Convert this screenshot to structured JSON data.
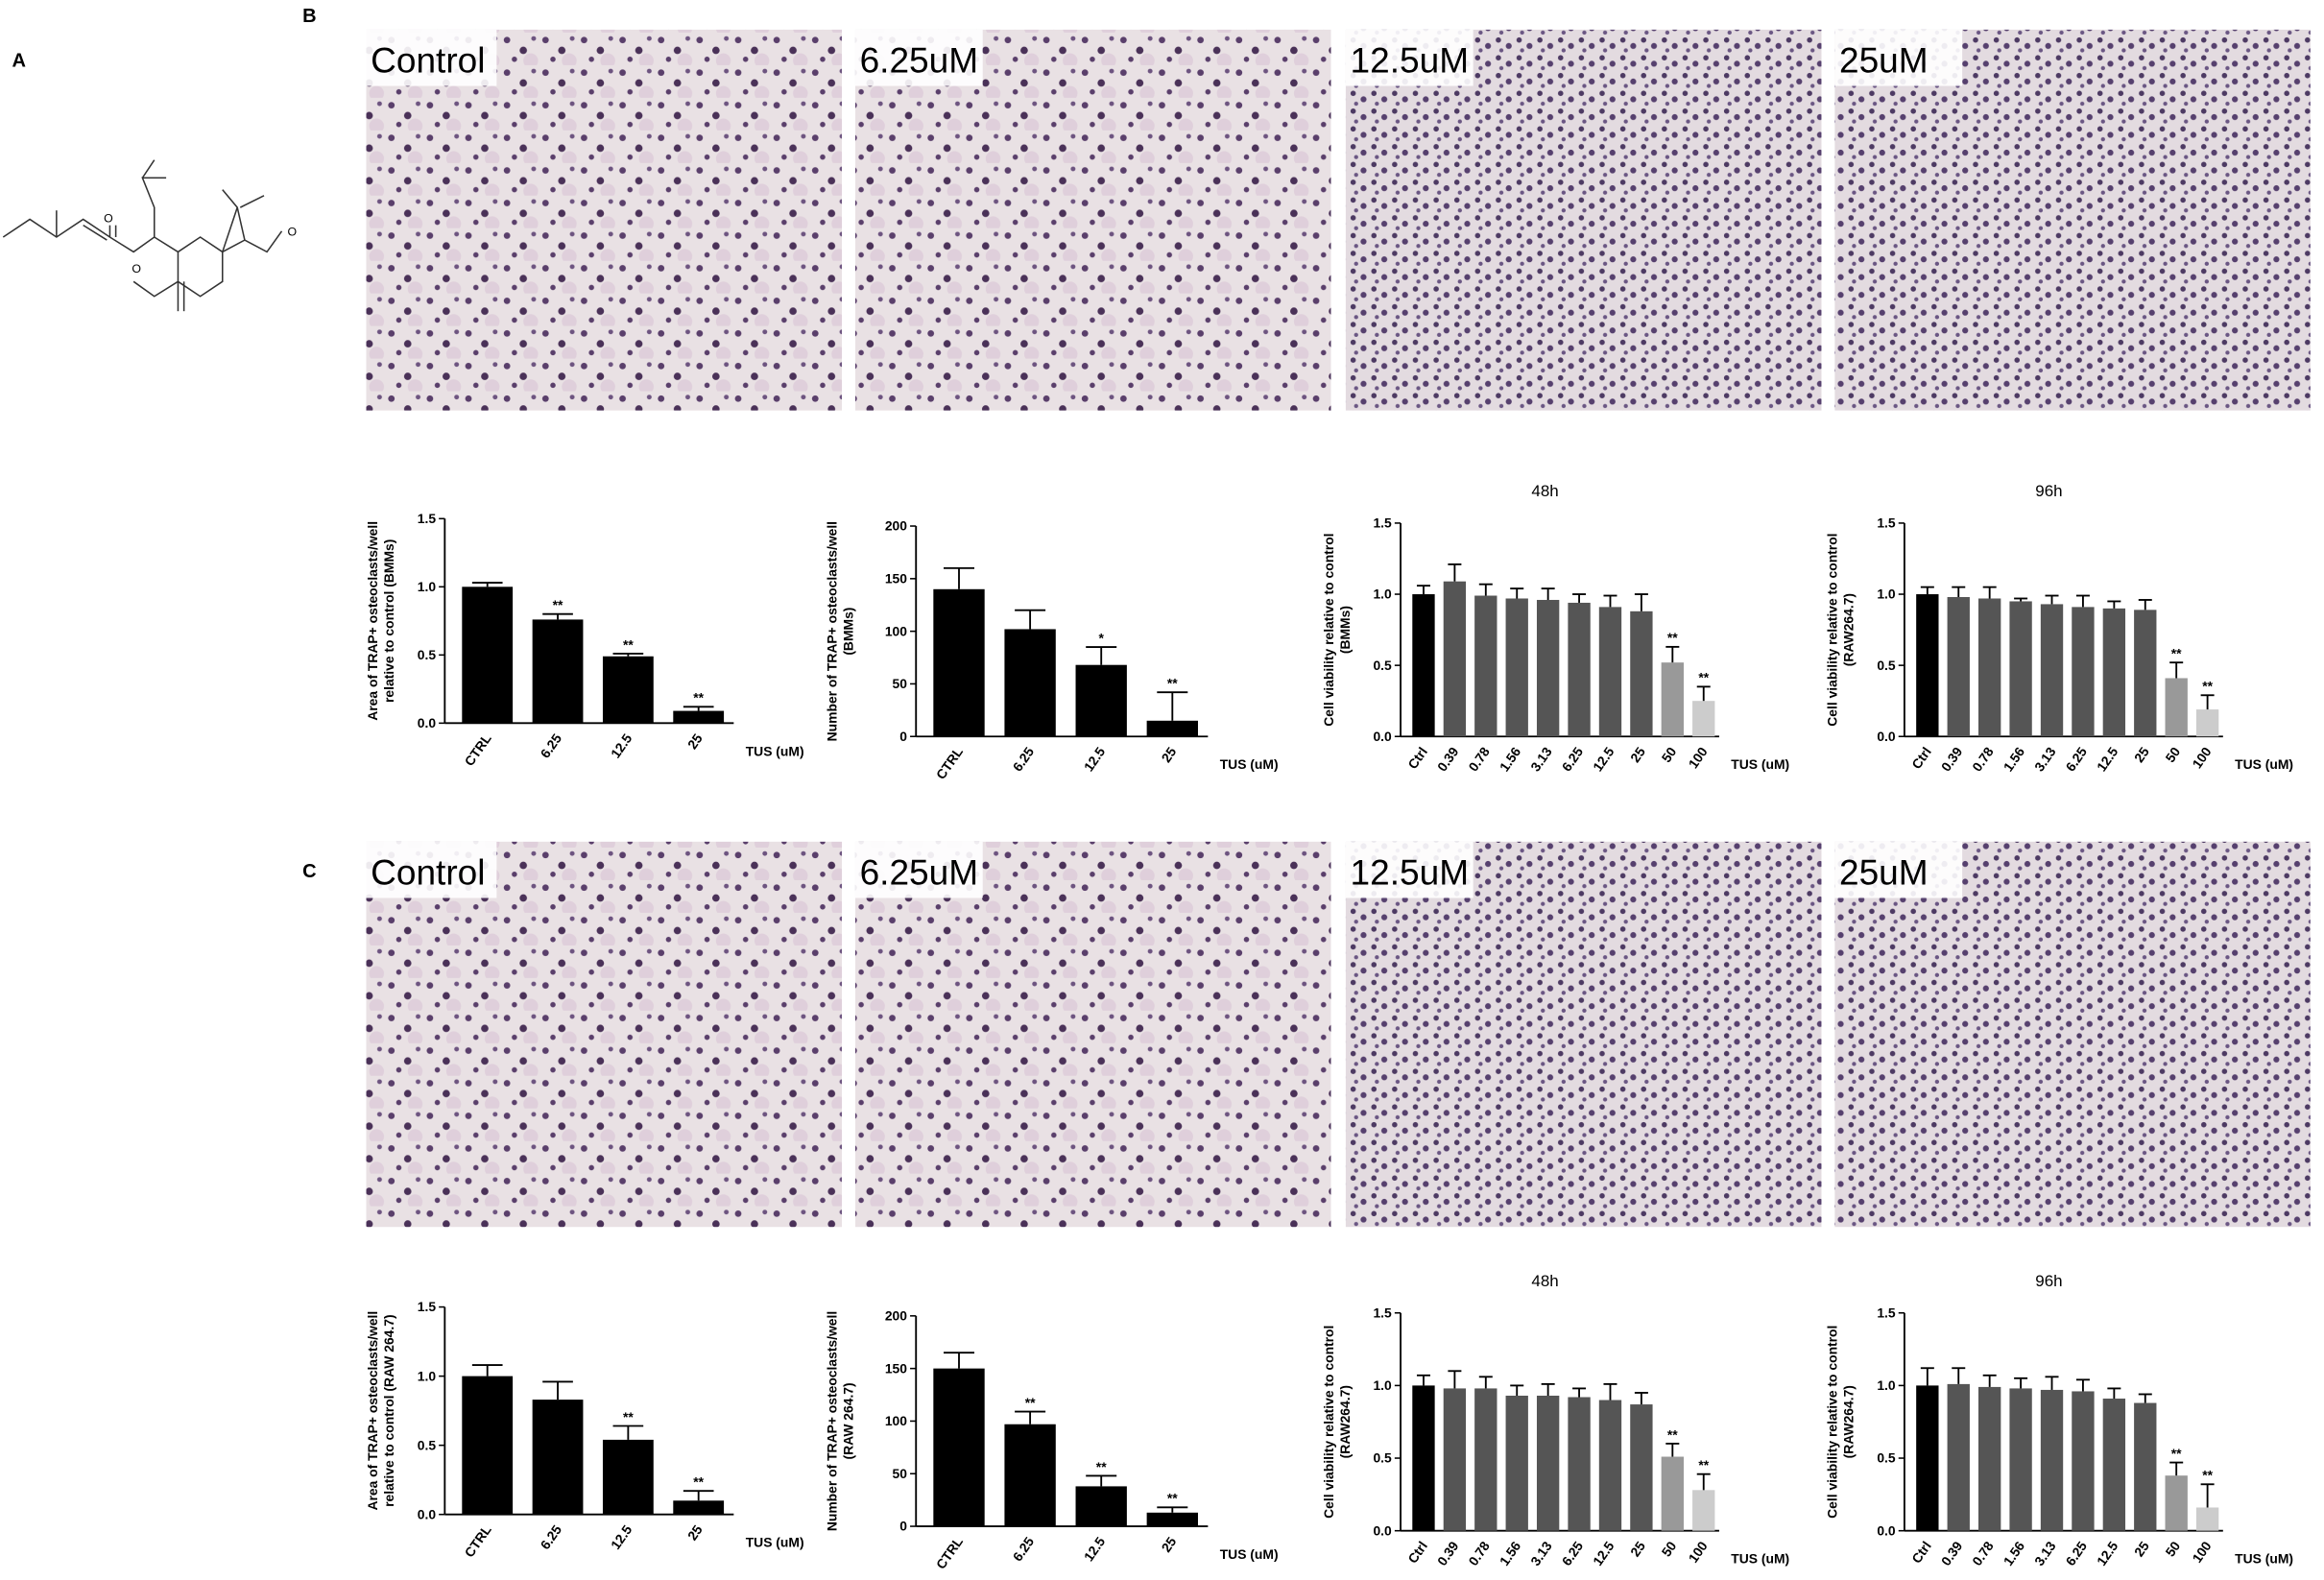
{
  "structure": {
    "atoms": [
      "O",
      "O",
      "O"
    ]
  },
  "panels": [
    {
      "label": "A"
    },
    {
      "label": "B",
      "images": [
        "Control",
        "6.25uM",
        "12.5uM",
        "25uM"
      ]
    },
    {
      "label": "C",
      "images": [
        "Control",
        "6.25uM",
        "12.5uM",
        "25uM"
      ]
    }
  ],
  "chart_data": [
    {
      "type": "bar",
      "ylabel": [
        "Area of TRAP+ osteoclasts/well",
        "relative to control (BMMs)"
      ],
      "xlabel": "TUS (uM)",
      "categories": [
        "CTRL",
        "6.25",
        "12.5",
        "25"
      ],
      "values": [
        1.0,
        0.76,
        0.49,
        0.09
      ],
      "errors": [
        0.03,
        0.04,
        0.02,
        0.03
      ],
      "annotations": [
        null,
        "**",
        "**",
        "**"
      ],
      "colors": [
        "#000000",
        "#000000",
        "#000000",
        "#000000"
      ],
      "ylim": [
        0,
        1.5
      ],
      "yticks": [
        {
          "value": 0,
          "label": "0.0"
        },
        {
          "value": 0.5,
          "label": "0.5"
        },
        {
          "value": 1,
          "label": "1.0"
        },
        {
          "value": 1.5,
          "label": "1.5"
        }
      ]
    },
    {
      "type": "bar",
      "ylabel": [
        "Number of TRAP+ osteoclasts/well",
        "(BMMs)"
      ],
      "xlabel": "TUS (uM)",
      "categories": [
        "CTRL",
        "6.25",
        "12.5",
        "25"
      ],
      "values": [
        140,
        102,
        68,
        15
      ],
      "errors": [
        20,
        18,
        17,
        27
      ],
      "annotations": [
        null,
        null,
        "*",
        "**"
      ],
      "colors": [
        "#000000",
        "#000000",
        "#000000",
        "#000000"
      ],
      "ylim": [
        0,
        200
      ],
      "yticks": [
        0,
        50,
        100,
        150,
        200
      ]
    },
    {
      "type": "bar",
      "title": "48h",
      "ylabel": [
        "Cell viability relative to control",
        "(BMMs)"
      ],
      "xlabel": "TUS (uM)",
      "categories": [
        "Ctrl",
        "0.39",
        "0.78",
        "1.56",
        "3.13",
        "6.25",
        "12.5",
        "25",
        "50",
        "100"
      ],
      "values": [
        1.0,
        1.09,
        0.99,
        0.97,
        0.96,
        0.94,
        0.91,
        0.88,
        0.52,
        0.25
      ],
      "errors": [
        0.06,
        0.12,
        0.08,
        0.07,
        0.08,
        0.06,
        0.08,
        0.12,
        0.11,
        0.1
      ],
      "annotations": [
        null,
        null,
        null,
        null,
        null,
        null,
        null,
        null,
        "**",
        "**"
      ],
      "colors": [
        "#000000",
        "#555555",
        "#555555",
        "#555555",
        "#555555",
        "#555555",
        "#555555",
        "#555555",
        "#999999",
        "#cccccc"
      ],
      "ylim": [
        0,
        1.5
      ],
      "yticks": [
        {
          "value": 0,
          "label": "0.0"
        },
        {
          "value": 0.5,
          "label": "0.5"
        },
        {
          "value": 1,
          "label": "1.0"
        },
        {
          "value": 1.5,
          "label": "1.5"
        }
      ]
    },
    {
      "type": "bar",
      "title": "96h",
      "ylabel": [
        "Cell viability relative to control",
        "(RAW264.7)"
      ],
      "xlabel": "TUS (uM)",
      "categories": [
        "Ctrl",
        "0.39",
        "0.78",
        "1.56",
        "3.13",
        "6.25",
        "12.5",
        "25",
        "50",
        "100"
      ],
      "values": [
        1.0,
        0.98,
        0.97,
        0.95,
        0.93,
        0.91,
        0.9,
        0.89,
        0.41,
        0.19
      ],
      "errors": [
        0.05,
        0.07,
        0.08,
        0.02,
        0.06,
        0.08,
        0.05,
        0.07,
        0.11,
        0.1
      ],
      "annotations": [
        null,
        null,
        null,
        null,
        null,
        null,
        null,
        null,
        "**",
        "**"
      ],
      "colors": [
        "#000000",
        "#555555",
        "#555555",
        "#555555",
        "#555555",
        "#555555",
        "#555555",
        "#555555",
        "#999999",
        "#cccccc"
      ],
      "ylim": [
        0,
        1.5
      ],
      "yticks": [
        {
          "value": 0,
          "label": "0.0"
        },
        {
          "value": 0.5,
          "label": "0.5"
        },
        {
          "value": 1,
          "label": "1.0"
        },
        {
          "value": 1.5,
          "label": "1.5"
        }
      ]
    },
    {
      "type": "bar",
      "ylabel": [
        "Area of TRAP+ osteoclasts/well",
        "relative to control (RAW 264.7)"
      ],
      "xlabel": "TUS (uM)",
      "categories": [
        "CTRL",
        "6.25",
        "12.5",
        "25"
      ],
      "values": [
        1.0,
        0.83,
        0.54,
        0.1
      ],
      "errors": [
        0.08,
        0.13,
        0.1,
        0.07
      ],
      "annotations": [
        null,
        null,
        "**",
        "**"
      ],
      "colors": [
        "#000000",
        "#000000",
        "#000000",
        "#000000"
      ],
      "ylim": [
        0,
        1.5
      ],
      "yticks": [
        {
          "value": 0,
          "label": "0.0"
        },
        {
          "value": 0.5,
          "label": "0.5"
        },
        {
          "value": 1,
          "label": "1.0"
        },
        {
          "value": 1.5,
          "label": "1.5"
        }
      ]
    },
    {
      "type": "bar",
      "ylabel": [
        "Number of TRAP+ osteoclasts/well",
        "(RAW 264.7)"
      ],
      "xlabel": "TUS (uM)",
      "categories": [
        "CTRL",
        "6.25",
        "12.5",
        "25"
      ],
      "values": [
        150,
        97,
        38,
        13
      ],
      "errors": [
        15,
        12,
        10,
        5
      ],
      "annotations": [
        null,
        "**",
        "**",
        "**"
      ],
      "colors": [
        "#000000",
        "#000000",
        "#000000",
        "#000000"
      ],
      "ylim": [
        0,
        200
      ],
      "yticks": [
        0,
        50,
        100,
        150,
        200
      ]
    },
    {
      "type": "bar",
      "title": "48h",
      "ylabel": [
        "Cell viability relative to control",
        "(RAW264.7)"
      ],
      "xlabel": "TUS (uM)",
      "categories": [
        "Ctrl",
        "0.39",
        "0.78",
        "1.56",
        "3.13",
        "6.25",
        "12.5",
        "25",
        "50",
        "100"
      ],
      "values": [
        1.0,
        0.98,
        0.98,
        0.93,
        0.93,
        0.92,
        0.9,
        0.87,
        0.51,
        0.28
      ],
      "errors": [
        0.07,
        0.12,
        0.08,
        0.07,
        0.08,
        0.06,
        0.11,
        0.08,
        0.09,
        0.11
      ],
      "annotations": [
        null,
        null,
        null,
        null,
        null,
        null,
        null,
        null,
        "**",
        "**"
      ],
      "colors": [
        "#000000",
        "#555555",
        "#555555",
        "#555555",
        "#555555",
        "#555555",
        "#555555",
        "#555555",
        "#999999",
        "#cccccc"
      ],
      "ylim": [
        0,
        1.5
      ],
      "yticks": [
        {
          "value": 0,
          "label": "0.0"
        },
        {
          "value": 0.5,
          "label": "0.5"
        },
        {
          "value": 1,
          "label": "1.0"
        },
        {
          "value": 1.5,
          "label": "1.5"
        }
      ]
    },
    {
      "type": "bar",
      "title": "96h",
      "ylabel": [
        "Cell viability relative to control",
        "(RAW264.7)"
      ],
      "xlabel": "TUS (uM)",
      "categories": [
        "Ctrl",
        "0.39",
        "0.78",
        "1.56",
        "3.13",
        "6.25",
        "12.5",
        "25",
        "50",
        "100"
      ],
      "values": [
        1.0,
        1.01,
        0.99,
        0.98,
        0.97,
        0.96,
        0.91,
        0.88,
        0.38,
        0.16
      ],
      "errors": [
        0.12,
        0.11,
        0.08,
        0.07,
        0.09,
        0.08,
        0.07,
        0.06,
        0.09,
        0.16
      ],
      "annotations": [
        null,
        null,
        null,
        null,
        null,
        null,
        null,
        null,
        "**",
        "**"
      ],
      "colors": [
        "#000000",
        "#555555",
        "#555555",
        "#555555",
        "#555555",
        "#555555",
        "#555555",
        "#555555",
        "#999999",
        "#cccccc"
      ],
      "ylim": [
        0,
        1.5
      ],
      "yticks": [
        {
          "value": 0,
          "label": "0.0"
        },
        {
          "value": 0.5,
          "label": "0.5"
        },
        {
          "value": 1,
          "label": "1.0"
        },
        {
          "value": 1.5,
          "label": "1.5"
        }
      ]
    }
  ]
}
